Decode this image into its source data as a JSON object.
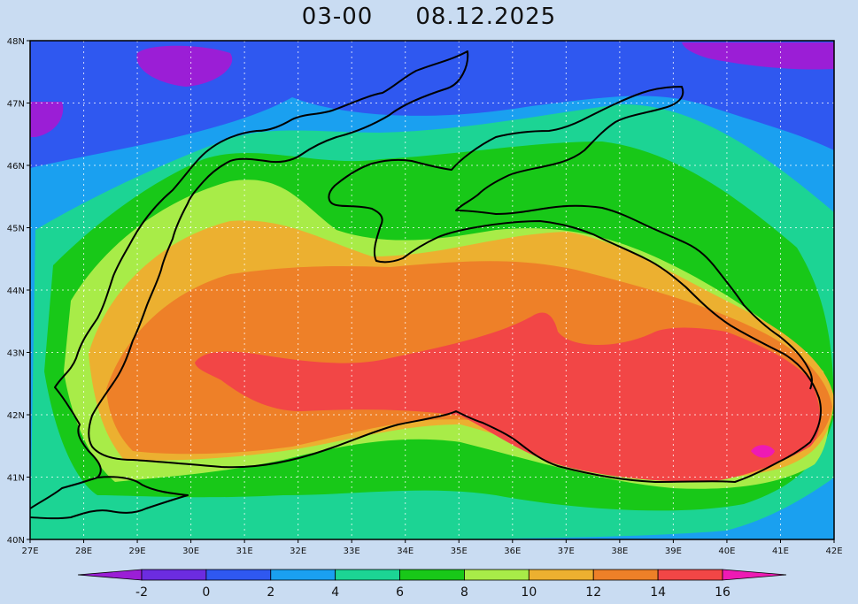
{
  "title": {
    "time": "03-00",
    "date": "08.12.2025"
  },
  "map": {
    "lon_range": [
      27,
      42
    ],
    "lat_range": [
      40,
      48
    ],
    "lat_ticks": [
      "40N",
      "41N",
      "42N",
      "43N",
      "44N",
      "45N",
      "46N",
      "47N",
      "48N"
    ],
    "lon_ticks": [
      "27E",
      "28E",
      "29E",
      "30E",
      "31E",
      "32E",
      "33E",
      "34E",
      "35E",
      "36E",
      "37E",
      "38E",
      "39E",
      "40E",
      "41E",
      "42E"
    ]
  },
  "colorbar": {
    "labels": [
      "-2",
      "0",
      "2",
      "4",
      "6",
      "8",
      "10",
      "12",
      "14",
      "16"
    ],
    "colors": [
      "#9b1ed6",
      "#6c2ce0",
      "#2f58f0",
      "#1aa0f0",
      "#1cd494",
      "#18c818",
      "#a8ec48",
      "#ecb030",
      "#ee8028",
      "#f24646",
      "#ee1ab4"
    ]
  },
  "field_colors": {
    "lt0": "#9b1ed6",
    "b0_2": "#2f58f0",
    "b2_4": "#1aa0f0",
    "b4_6": "#1cd494",
    "b6_8": "#18c818",
    "b8_10": "#a8ec48",
    "b10_12": "#ecb030",
    "b12_14": "#ee8028",
    "b14_16": "#f24646",
    "gt16": "#ee1ab4"
  }
}
